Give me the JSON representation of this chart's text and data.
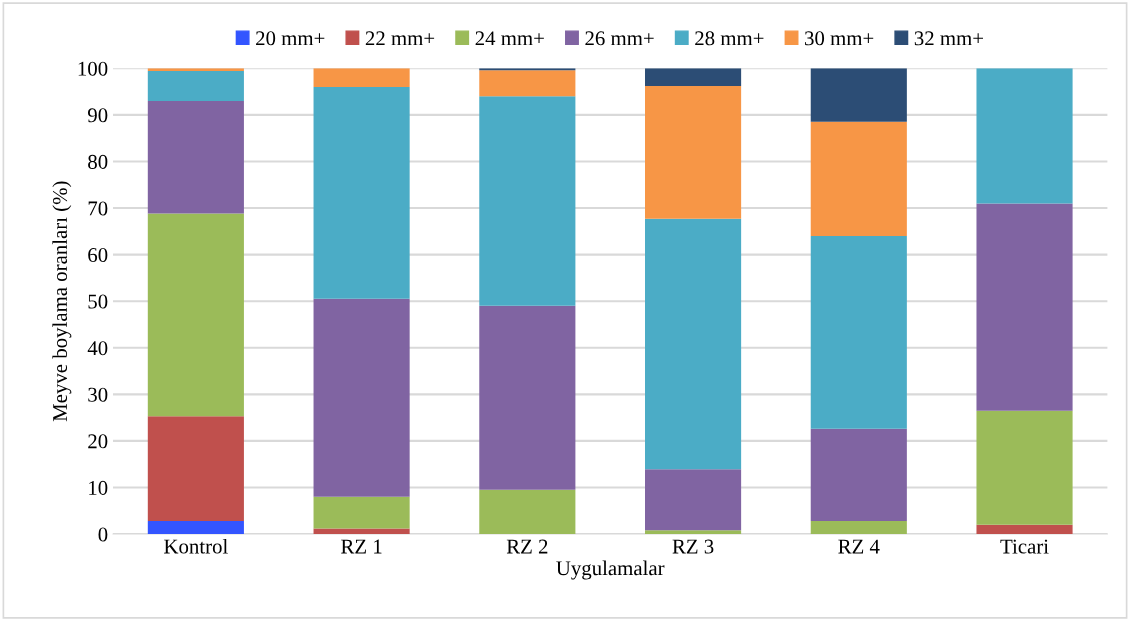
{
  "chart_data": {
    "type": "bar",
    "stacked": true,
    "xlabel": "Uygulamalar",
    "ylabel": "Meyve boylama oranları (%)",
    "categories": [
      "Kontrol",
      "RZ 1",
      "RZ 2",
      "RZ 3",
      "RZ 4",
      "Ticari"
    ],
    "series": [
      {
        "name": "20 mm+",
        "color": "#3355ff",
        "values": [
          2.8,
          0,
          0,
          0,
          0,
          0
        ]
      },
      {
        "name": "22 mm+",
        "color": "#c0504d",
        "values": [
          22.5,
          1.2,
          0,
          0,
          0,
          2.0
        ]
      },
      {
        "name": "24 mm+",
        "color": "#9bbb59",
        "values": [
          43.5,
          6.8,
          9.5,
          0.8,
          2.8,
          24.5
        ]
      },
      {
        "name": "26 mm+",
        "color": "#8064a2",
        "values": [
          24.2,
          42.5,
          39.5,
          13.1,
          19.8,
          44.5
        ]
      },
      {
        "name": "28 mm+",
        "color": "#4bacc6",
        "values": [
          6.4,
          45.5,
          45.0,
          53.8,
          41.4,
          29.0
        ]
      },
      {
        "name": "30 mm+",
        "color": "#f79646",
        "values": [
          0.6,
          4.0,
          5.6,
          28.5,
          24.5,
          0
        ]
      },
      {
        "name": "32 mm+",
        "color": "#2c4d75",
        "values": [
          0,
          0,
          0.4,
          3.8,
          11.5,
          0
        ]
      }
    ],
    "ylim": [
      0,
      100
    ],
    "yticks": [
      0,
      10,
      20,
      30,
      40,
      50,
      60,
      70,
      80,
      90,
      100
    ],
    "grid": "y",
    "legend": "top"
  }
}
